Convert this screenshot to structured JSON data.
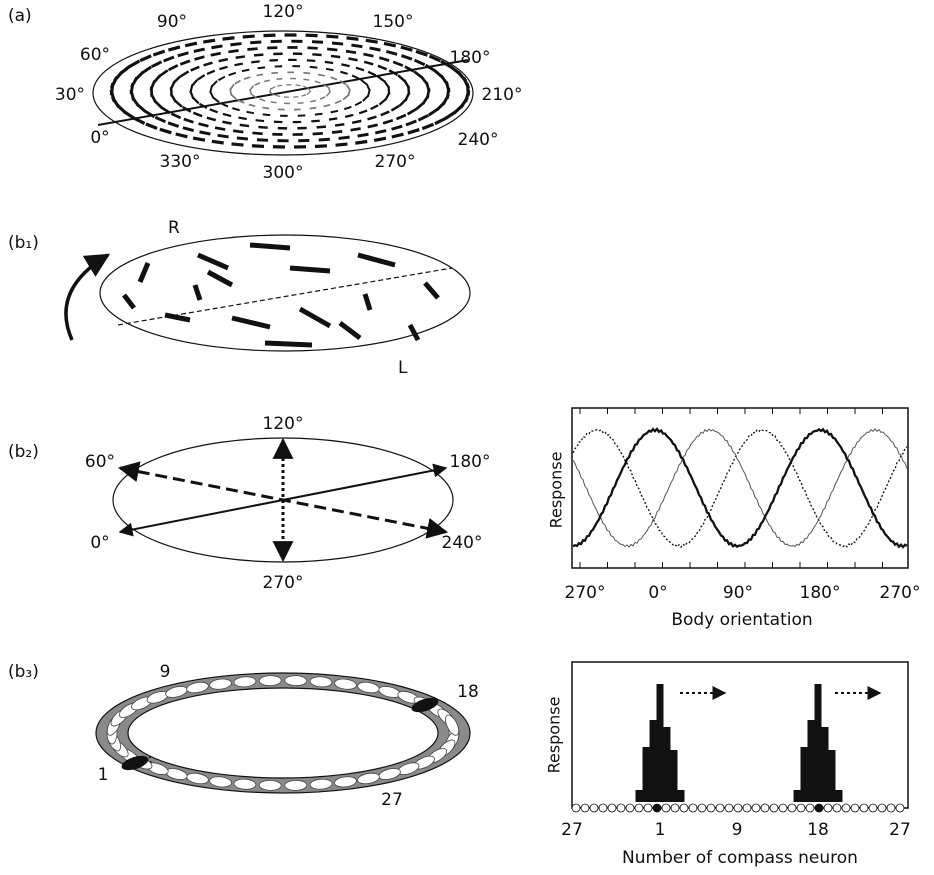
{
  "panel_a": {
    "label": "(a)",
    "angle_labels": [
      "120°",
      "150°",
      "180°",
      "210°",
      "240°",
      "270°",
      "300°",
      "330°",
      "0°",
      "30°",
      "60°",
      "90°"
    ]
  },
  "panel_b1": {
    "label": "(b₁)",
    "right": "R",
    "left": "L"
  },
  "panel_b2": {
    "label": "(b₂)",
    "angle_labels": [
      "120°",
      "180°",
      "240°",
      "270°",
      "0°",
      "60°"
    ],
    "plot": {
      "y_label": "Response",
      "x_label": "Body orientation",
      "x_tick_labels": [
        "270°",
        "0°",
        "90°",
        "180°",
        "270°"
      ]
    }
  },
  "panel_b3": {
    "label": "(b₃)",
    "ring_labels": [
      "9",
      "18",
      "1",
      "27"
    ],
    "plot": {
      "y_label": "Response",
      "x_label": "Number of compass neuron",
      "x_tick_labels": [
        "27",
        "1",
        "9",
        "18",
        "27"
      ]
    }
  }
}
